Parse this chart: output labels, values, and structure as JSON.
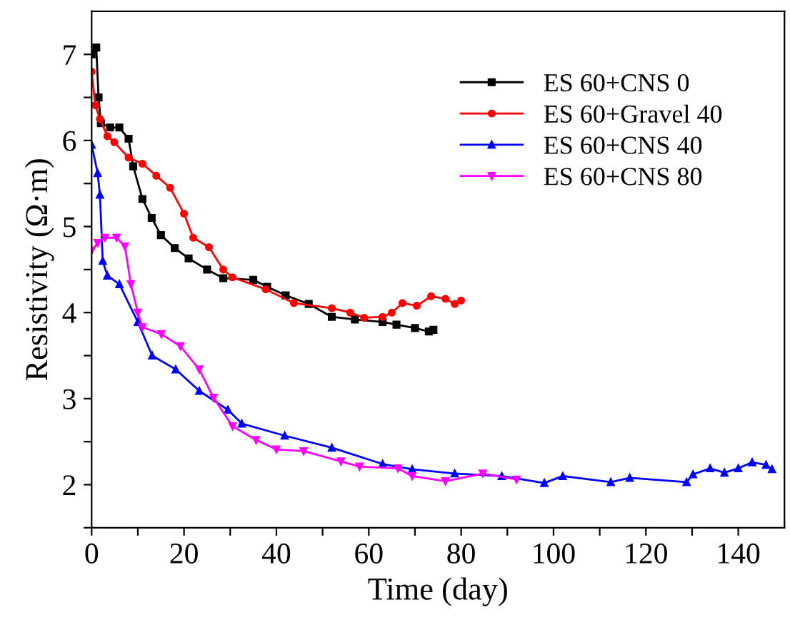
{
  "chart_data": {
    "type": "line",
    "xlabel": "Time (day)",
    "ylabel": "Resistivity (Ω·m)",
    "xlim": [
      0,
      150
    ],
    "ylim": [
      1.5,
      7.5
    ],
    "xticks": [
      0,
      {
        "value": 10,
        "label": null
      },
      20,
      {
        "value": 30,
        "label": null
      },
      40,
      {
        "value": 50,
        "label": null
      },
      60,
      {
        "value": 70,
        "label": null
      },
      80,
      {
        "value": 90,
        "label": null
      },
      100,
      {
        "value": 110,
        "label": null
      },
      120,
      {
        "value": 130,
        "label": null
      },
      140
    ],
    "yticks": [
      {
        "value": 1.5,
        "label": null
      },
      2,
      {
        "value": 2.5,
        "label": null
      },
      3,
      {
        "value": 3.5,
        "label": null
      },
      4,
      {
        "value": 4.5,
        "label": null
      },
      5,
      {
        "value": 5.5,
        "label": null
      },
      6,
      {
        "value": 6.5,
        "label": null
      },
      7
    ],
    "grid": false,
    "legend": "top right",
    "line_style": "solid",
    "series": [
      {
        "name": "ES 60+CNS 0",
        "color": "#000000",
        "marker": "square",
        "x": [
          0,
          1,
          1.5,
          2,
          4,
          6,
          8,
          9,
          11,
          13,
          15,
          18,
          21,
          25,
          28.5,
          35,
          38,
          42,
          47,
          52,
          57,
          63,
          66,
          70,
          73,
          74
        ],
        "values": [
          7.0,
          7.08,
          6.5,
          6.2,
          6.15,
          6.15,
          6.02,
          5.7,
          5.32,
          5.1,
          4.9,
          4.75,
          4.63,
          4.5,
          4.4,
          4.38,
          4.3,
          4.2,
          4.1,
          3.95,
          3.92,
          3.89,
          3.86,
          3.82,
          3.78,
          3.8
        ]
      },
      {
        "name": "ES 60+Gravel 40",
        "color": "#ff0000",
        "marker": "circle",
        "x": [
          0,
          0.8,
          1.8,
          3.4,
          4.9,
          8,
          11,
          14,
          17,
          20,
          22,
          25.4,
          28.5,
          30.5,
          37.7,
          43.8,
          52,
          56,
          59,
          63,
          65,
          67.3,
          70.4,
          73.5,
          76.6,
          78.6,
          80
        ],
        "values": [
          6.8,
          6.41,
          6.25,
          6.05,
          5.98,
          5.8,
          5.73,
          5.59,
          5.45,
          5.15,
          4.87,
          4.76,
          4.5,
          4.41,
          4.27,
          4.11,
          4.05,
          4.0,
          3.94,
          3.95,
          4.0,
          4.11,
          4.08,
          4.19,
          4.16,
          4.1,
          4.14
        ]
      },
      {
        "name": "ES 60+CNS 40",
        "color": "#0000ff",
        "marker": "triangle",
        "x": [
          0,
          1.3,
          1.8,
          2.4,
          3.4,
          6,
          10,
          13.1,
          18.2,
          23.3,
          29.5,
          32.5,
          41.8,
          52,
          63,
          69.4,
          78.6,
          88.8,
          98,
          102,
          112.4,
          116.5,
          128.8,
          130.2,
          133.9,
          137,
          140,
          143,
          146,
          147.3
        ],
        "values": [
          5.95,
          5.62,
          5.37,
          4.6,
          4.43,
          4.33,
          3.89,
          3.5,
          3.34,
          3.09,
          2.87,
          2.71,
          2.57,
          2.43,
          2.24,
          2.18,
          2.13,
          2.1,
          2.02,
          2.1,
          2.03,
          2.08,
          2.03,
          2.12,
          2.19,
          2.14,
          2.19,
          2.26,
          2.23,
          2.18
        ]
      },
      {
        "name": "ES 60+CNS 80",
        "color": "#ff00ff",
        "marker": "triangle_down",
        "x": [
          0,
          1.3,
          2.9,
          5.4,
          7.2,
          8.5,
          10,
          11,
          15.1,
          19.2,
          23.3,
          26.4,
          30.5,
          35.6,
          40,
          45.9,
          54,
          58,
          66.3,
          69.4,
          76.6,
          84.7,
          92
        ],
        "values": [
          4.72,
          4.81,
          4.87,
          4.87,
          4.77,
          4.33,
          4.0,
          3.83,
          3.75,
          3.61,
          3.34,
          3.01,
          2.68,
          2.52,
          2.41,
          2.39,
          2.27,
          2.21,
          2.19,
          2.1,
          2.04,
          2.13,
          2.06
        ]
      }
    ]
  }
}
